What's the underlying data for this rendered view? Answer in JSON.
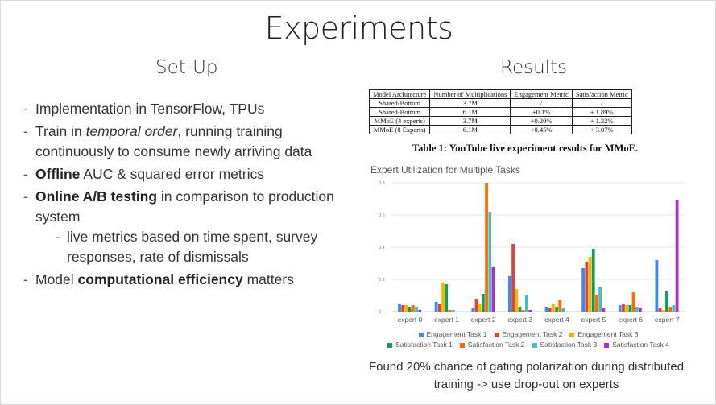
{
  "title": "Experiments",
  "setup": {
    "heading": "Set-Up",
    "b1": "Implementation in TensorFlow, TPUs",
    "b2_pre": "Train in ",
    "b2_em": "temporal order",
    "b2_post": ", running training continuously to consume newly arriving data",
    "b3_bold": "Offline",
    "b3_post": " AUC & squared error metrics",
    "b4_bold": "Online A/B testing",
    "b4_post": " in comparison to production system",
    "b4_sub": "live metrics based on time spent, survey responses, rate of dismissals",
    "b5_pre": "Model ",
    "b5_bold": "computational efficiency",
    "b5_post": " matters"
  },
  "results": {
    "heading": "Results",
    "table": {
      "headers": [
        "Model Architecture",
        "Number of Multiplications",
        "Engagement Metric",
        "Satisfaction Metric"
      ],
      "rows": [
        [
          "Shared-Bottom",
          "3.7M",
          "/",
          "/"
        ],
        [
          "Shared-Bottom",
          "6.1M",
          "+0.1%",
          "+ 1.89%"
        ],
        [
          "MMoE (4 experts)",
          "3.7M",
          "+0.20%",
          "+ 1.22%"
        ],
        [
          "MMoE (8 Experts)",
          "6.1M",
          "+0.45%",
          "+ 3.07%"
        ]
      ],
      "caption": "Table 1: YouTube live experiment results for MMoE."
    },
    "note": "Found 20% chance of gating polarization during distributed training -> use drop-out on experts"
  },
  "chart_data": {
    "type": "bar",
    "title": "Expert Utilization for Multiple Tasks",
    "categories": [
      "expert 0",
      "expert 1",
      "expert 2",
      "expert 3",
      "expert 4",
      "expert 5",
      "expert 6",
      "expert 7"
    ],
    "ylim": [
      0,
      0.8
    ],
    "yticks": [
      "0",
      "0.2",
      "0.4",
      "0.6",
      "0.8"
    ],
    "legend_placement": "bottom",
    "series": [
      {
        "name": "Engagement Task 1",
        "color": "#4285f4",
        "values": [
          0.05,
          0.06,
          0.02,
          0.22,
          0.03,
          0.27,
          0.04,
          0.32
        ]
      },
      {
        "name": "Engagement Task 2",
        "color": "#db4437",
        "values": [
          0.04,
          0.05,
          0.08,
          0.42,
          0.02,
          0.31,
          0.05,
          0.02
        ]
      },
      {
        "name": "Engagement Task 3",
        "color": "#f4b400",
        "values": [
          0.04,
          0.18,
          0.05,
          0.14,
          0.05,
          0.34,
          0.04,
          0.01
        ]
      },
      {
        "name": "Satisfaction Task 1",
        "color": "#0f9d58",
        "values": [
          0.03,
          0.17,
          0.11,
          0.03,
          0.03,
          0.39,
          0.04,
          0.13
        ]
      },
      {
        "name": "Satisfaction Task 2",
        "color": "#ff6d00",
        "values": [
          0.04,
          0.01,
          0.8,
          0.01,
          0.07,
          0.1,
          0.12,
          0.03
        ]
      },
      {
        "name": "Satisfaction Task 3",
        "color": "#46bdc6",
        "values": [
          0.03,
          0.01,
          0.62,
          0.1,
          0.02,
          0.15,
          0.03,
          0.04
        ]
      },
      {
        "name": "Satisfaction Task 4",
        "color": "#ab30c4",
        "values": [
          0.01,
          0.0,
          0.28,
          0.01,
          0.0,
          0.02,
          0.02,
          0.69
        ]
      }
    ]
  }
}
